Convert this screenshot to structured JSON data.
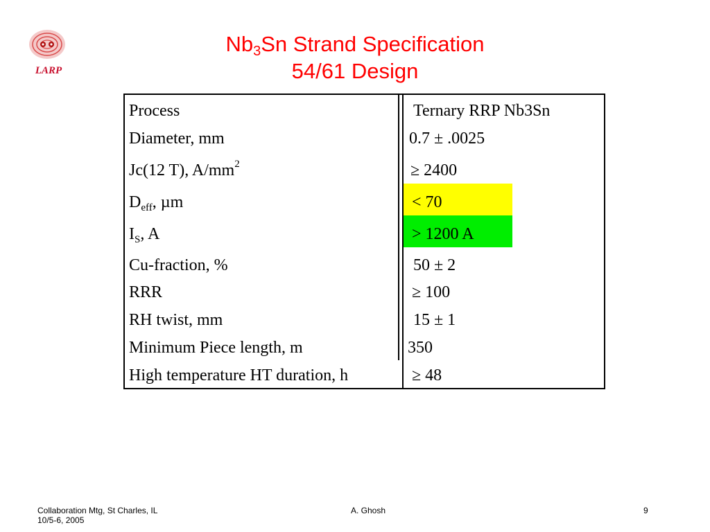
{
  "logo": {
    "text": "LARP",
    "icon": "larp-logo-icon"
  },
  "title": {
    "line1_part1": "Nb",
    "line1_sub": "3",
    "line1_part2": "Sn Strand Specification",
    "line2": "54/61 Design"
  },
  "table": {
    "rows": [
      {
        "param": "Process",
        "value": "Ternary RRP Nb3Sn"
      },
      {
        "param": "Diameter, mm",
        "value": "0.7 ± .0025"
      },
      {
        "param_main": "Jc(12 T), A/mm",
        "param_sup": "2",
        "value": "≥ 2400"
      },
      {
        "param_main": "D",
        "param_sub": "eff",
        "param_rest": ", µm",
        "value": "< 70"
      },
      {
        "param_main": "I",
        "param_sub": "S",
        "param_rest": ", A",
        "value": "> 1200 A"
      },
      {
        "param": "Cu-fraction, %",
        "value": "50 ± 2"
      },
      {
        "param": "RRR",
        "value": "≥ 100"
      },
      {
        "param": "RH twist, mm",
        "value": "15 ± 1"
      },
      {
        "param": "Minimum Piece length, m",
        "value": "350"
      },
      {
        "param": "High temperature HT duration, h",
        "value": "≥ 48"
      }
    ],
    "highlight_colors": {
      "yellow": "#ffff00",
      "green": "#00ee00"
    }
  },
  "footer": {
    "left_line1": "Collaboration Mtg, St Charles, IL",
    "left_line2": "10/5-6, 2005",
    "center": "A. Ghosh",
    "page": "9"
  },
  "colors": {
    "title": "#ff0000",
    "logo": "#c8102e"
  }
}
